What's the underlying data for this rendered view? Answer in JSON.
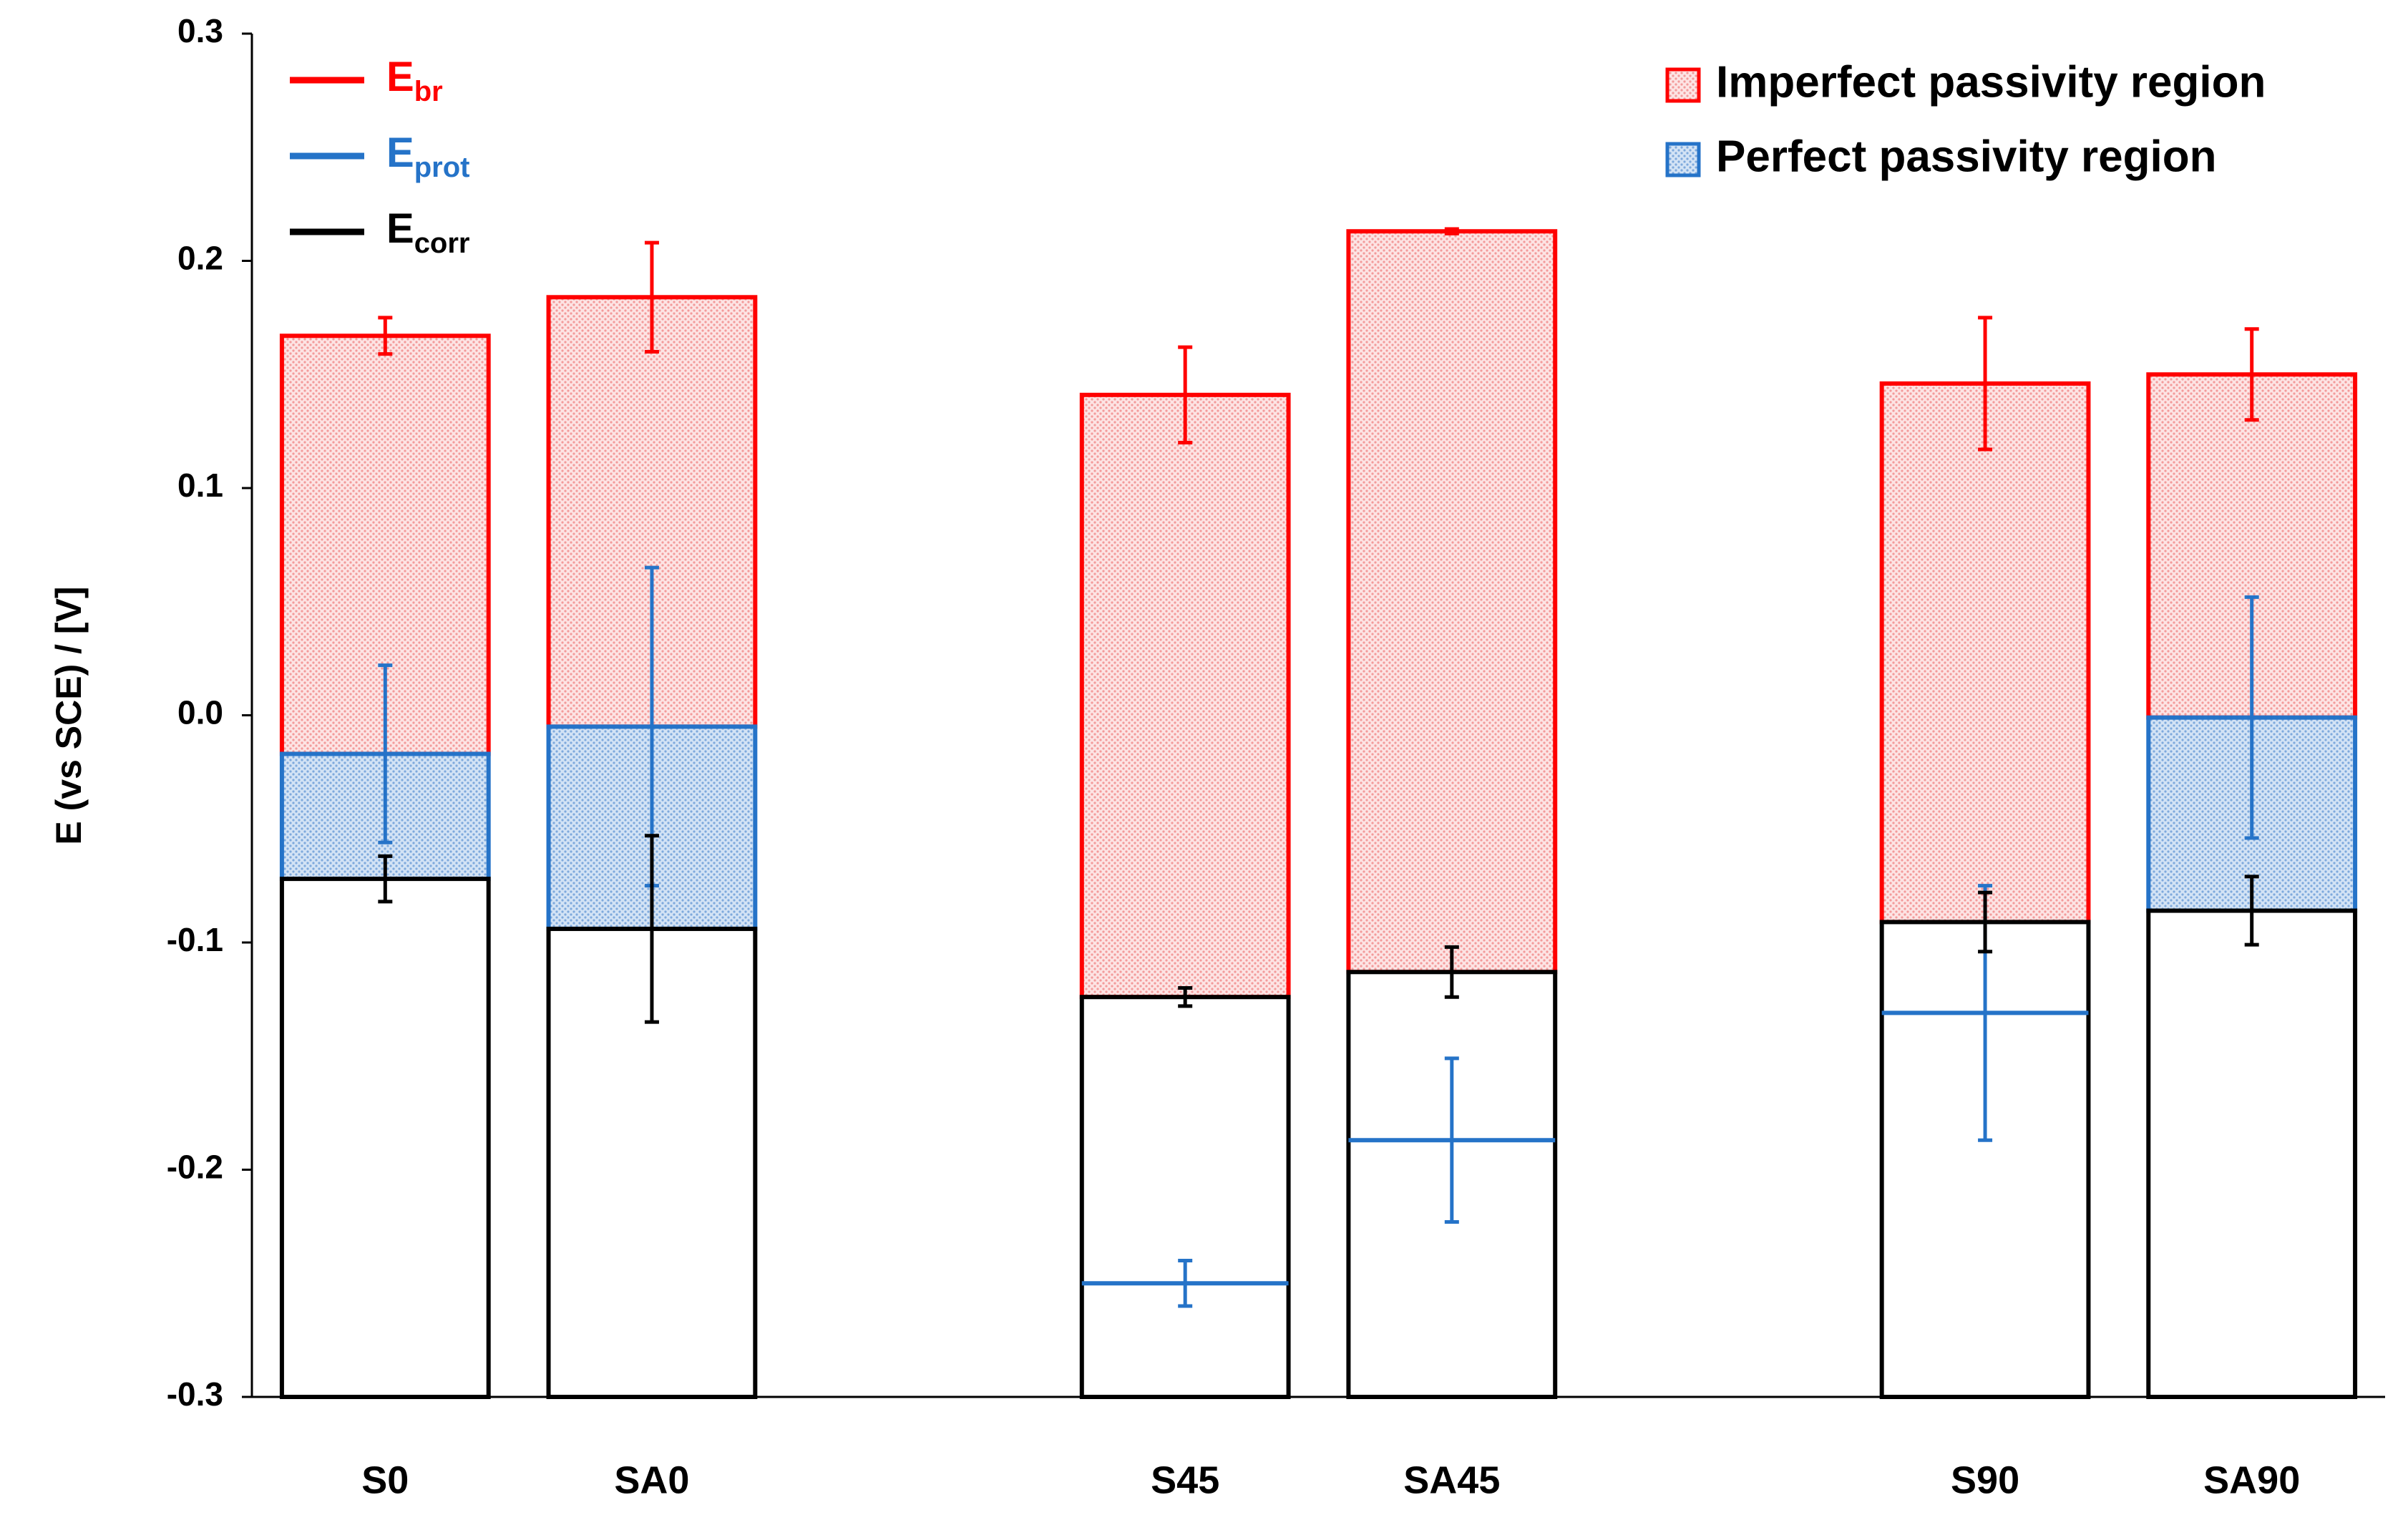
{
  "chart_data": {
    "type": "passivity-bar",
    "y_label": "E (vs SCE) / [V]",
    "categories": [
      "S0",
      "SA0",
      null,
      "S45",
      "SA45",
      null,
      "S90",
      "SA90"
    ],
    "series": [
      {
        "name": "E",
        "subscript": "br",
        "color": "#ff0000",
        "values": [
          0.167,
          0.184,
          null,
          0.141,
          0.213,
          null,
          0.146,
          0.15
        ],
        "errors": [
          0.008,
          0.024,
          null,
          0.021,
          0.001,
          null,
          0.029,
          0.02
        ]
      },
      {
        "name": "E",
        "subscript": "prot",
        "color": "#2573c8",
        "values": [
          -0.017,
          -0.005,
          null,
          -0.25,
          -0.187,
          null,
          -0.131,
          -0.001
        ],
        "errors": [
          0.039,
          0.07,
          null,
          0.01,
          0.036,
          null,
          0.056,
          0.053
        ]
      },
      {
        "name": "E",
        "subscript": "corr",
        "color": "#000000",
        "values": [
          -0.072,
          -0.094,
          null,
          -0.124,
          -0.113,
          null,
          -0.091,
          -0.086
        ],
        "errors": [
          0.01,
          0.041,
          null,
          0.004,
          0.011,
          null,
          0.013,
          0.015
        ]
      }
    ],
    "regions": [
      {
        "name": "Imperfect passivity region",
        "color": "#ff0000"
      },
      {
        "name": "Perfect passivity region",
        "color": "#2573c8"
      }
    ],
    "ylim": [
      -0.3,
      0.3
    ],
    "yticks": [
      -0.3,
      -0.2,
      -0.1,
      {
        "value": 0,
        "label": "0.0"
      },
      0.1,
      0.2,
      0.3
    ]
  }
}
